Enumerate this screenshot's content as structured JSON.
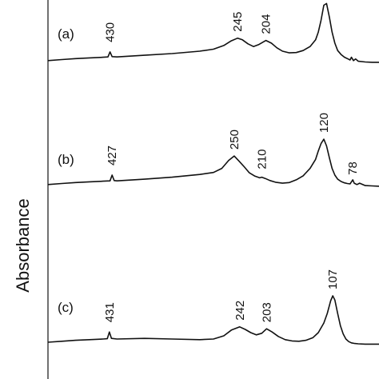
{
  "chart_data": {
    "type": "line",
    "title": "",
    "xlabel": "",
    "ylabel": "Absorbance",
    "x_direction": "decreasing-left-to-right",
    "xlim": [
      520,
      40
    ],
    "series": [
      {
        "name": "(a)",
        "x": [
          520,
          500,
          480,
          460,
          440,
          433,
          430,
          427,
          420,
          380,
          340,
          300,
          280,
          265,
          255,
          245,
          238,
          230,
          222,
          214,
          204,
          196,
          188,
          180,
          170,
          160,
          150,
          140,
          132,
          128,
          124,
          120,
          116,
          112,
          108,
          104,
          100,
          95,
          90,
          85,
          82,
          80,
          77,
          74,
          70,
          60,
          50,
          40
        ],
        "y": [
          0.1,
          0.13,
          0.16,
          0.18,
          0.2,
          0.21,
          0.36,
          0.22,
          0.21,
          0.26,
          0.31,
          0.38,
          0.44,
          0.55,
          0.68,
          0.77,
          0.72,
          0.6,
          0.52,
          0.58,
          0.7,
          0.62,
          0.48,
          0.38,
          0.33,
          0.34,
          0.4,
          0.52,
          0.72,
          0.95,
          1.3,
          1.75,
          1.8,
          1.4,
          0.95,
          0.62,
          0.4,
          0.28,
          0.2,
          0.15,
          0.12,
          0.2,
          0.1,
          0.15,
          0.08,
          0.06,
          0.05,
          0.05
        ]
      },
      {
        "name": "(b)",
        "x": [
          520,
          500,
          480,
          460,
          440,
          430,
          427,
          424,
          420,
          380,
          340,
          300,
          280,
          268,
          258,
          250,
          243,
          235,
          228,
          220,
          213,
          210,
          205,
          198,
          190,
          180,
          170,
          160,
          150,
          140,
          132,
          128,
          124,
          120,
          116,
          112,
          108,
          104,
          100,
          95,
          90,
          86,
          82,
          80,
          78,
          76,
          72,
          68,
          60,
          50,
          40
        ],
        "y": [
          0.1,
          0.13,
          0.16,
          0.18,
          0.2,
          0.21,
          0.38,
          0.22,
          0.21,
          0.26,
          0.32,
          0.4,
          0.46,
          0.58,
          0.82,
          0.95,
          0.8,
          0.62,
          0.45,
          0.35,
          0.3,
          0.32,
          0.28,
          0.22,
          0.17,
          0.14,
          0.16,
          0.24,
          0.36,
          0.58,
          0.85,
          1.1,
          1.32,
          1.45,
          1.25,
          0.9,
          0.58,
          0.38,
          0.26,
          0.19,
          0.15,
          0.13,
          0.12,
          0.18,
          0.24,
          0.14,
          0.1,
          0.14,
          0.07,
          0.06,
          0.05
        ]
      },
      {
        "name": "(c)",
        "x": [
          520,
          500,
          480,
          460,
          440,
          434,
          431,
          428,
          420,
          380,
          340,
          300,
          280,
          265,
          254,
          242,
          234,
          226,
          218,
          210,
          203,
          195,
          186,
          176,
          166,
          156,
          146,
          136,
          128,
          120,
          115,
          110,
          107,
          104,
          100,
          96,
          92,
          88,
          84,
          80,
          75,
          70,
          60,
          50,
          40
        ],
        "y": [
          0.1,
          0.13,
          0.16,
          0.18,
          0.2,
          0.21,
          0.42,
          0.22,
          0.2,
          0.22,
          0.2,
          0.18,
          0.2,
          0.3,
          0.48,
          0.58,
          0.5,
          0.4,
          0.33,
          0.38,
          0.52,
          0.42,
          0.28,
          0.18,
          0.14,
          0.13,
          0.16,
          0.24,
          0.4,
          0.7,
          1.0,
          1.4,
          1.55,
          1.42,
          1.0,
          0.62,
          0.36,
          0.2,
          0.12,
          0.08,
          0.06,
          0.05,
          0.04,
          0.04,
          0.04
        ]
      }
    ],
    "peak_labels": [
      {
        "series": "(a)",
        "x": 430,
        "text": "430"
      },
      {
        "series": "(a)",
        "x": 245,
        "text": "245"
      },
      {
        "series": "(a)",
        "x": 204,
        "text": "204"
      },
      {
        "series": "(b)",
        "x": 427,
        "text": "427"
      },
      {
        "series": "(b)",
        "x": 250,
        "text": "250"
      },
      {
        "series": "(b)",
        "x": 210,
        "text": "210"
      },
      {
        "series": "(b)",
        "x": 120,
        "text": "120"
      },
      {
        "series": "(b)",
        "x": 78,
        "text": "78"
      },
      {
        "series": "(c)",
        "x": 431,
        "text": "431"
      },
      {
        "series": "(c)",
        "x": 242,
        "text": "242"
      },
      {
        "series": "(c)",
        "x": 203,
        "text": "203"
      },
      {
        "series": "(c)",
        "x": 107,
        "text": "107"
      }
    ],
    "grid": false,
    "legend": "none"
  }
}
